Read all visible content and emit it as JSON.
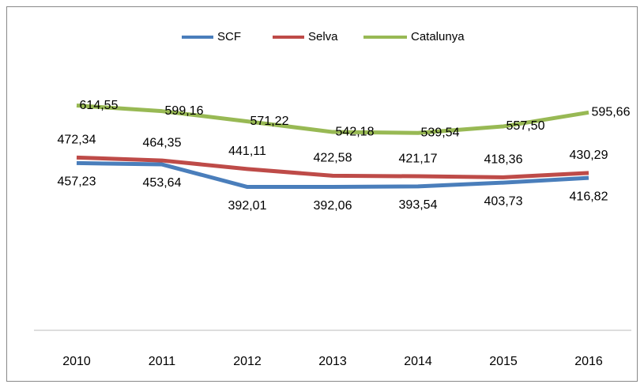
{
  "chart_data": {
    "type": "line",
    "categories": [
      "2010",
      "2011",
      "2012",
      "2013",
      "2014",
      "2015",
      "2016"
    ],
    "series": [
      {
        "name": "SCF",
        "color": "#4a7ebb",
        "values": [
          457.23,
          453.64,
          392.01,
          392.06,
          393.54,
          403.73,
          416.82
        ],
        "value_labels": [
          "457,23",
          "453,64",
          "392,01",
          "392,06",
          "393,54",
          "403,73",
          "416,82"
        ]
      },
      {
        "name": "Selva",
        "color": "#be4b48",
        "values": [
          472.34,
          464.35,
          441.11,
          422.58,
          421.17,
          418.36,
          430.29
        ],
        "value_labels": [
          "472,34",
          "464,35",
          "441,11",
          "422,58",
          "421,17",
          "418,36",
          "430,29"
        ]
      },
      {
        "name": "Catalunya",
        "color": "#98b954",
        "values": [
          614.55,
          599.16,
          571.22,
          542.18,
          539.54,
          557.5,
          595.66
        ],
        "value_labels": [
          "614,55",
          "599,16",
          "571,22",
          "542,18",
          "539,54",
          "557,50",
          "595,66"
        ]
      }
    ],
    "ylim": [
      0,
      700
    ],
    "legend": "top"
  }
}
